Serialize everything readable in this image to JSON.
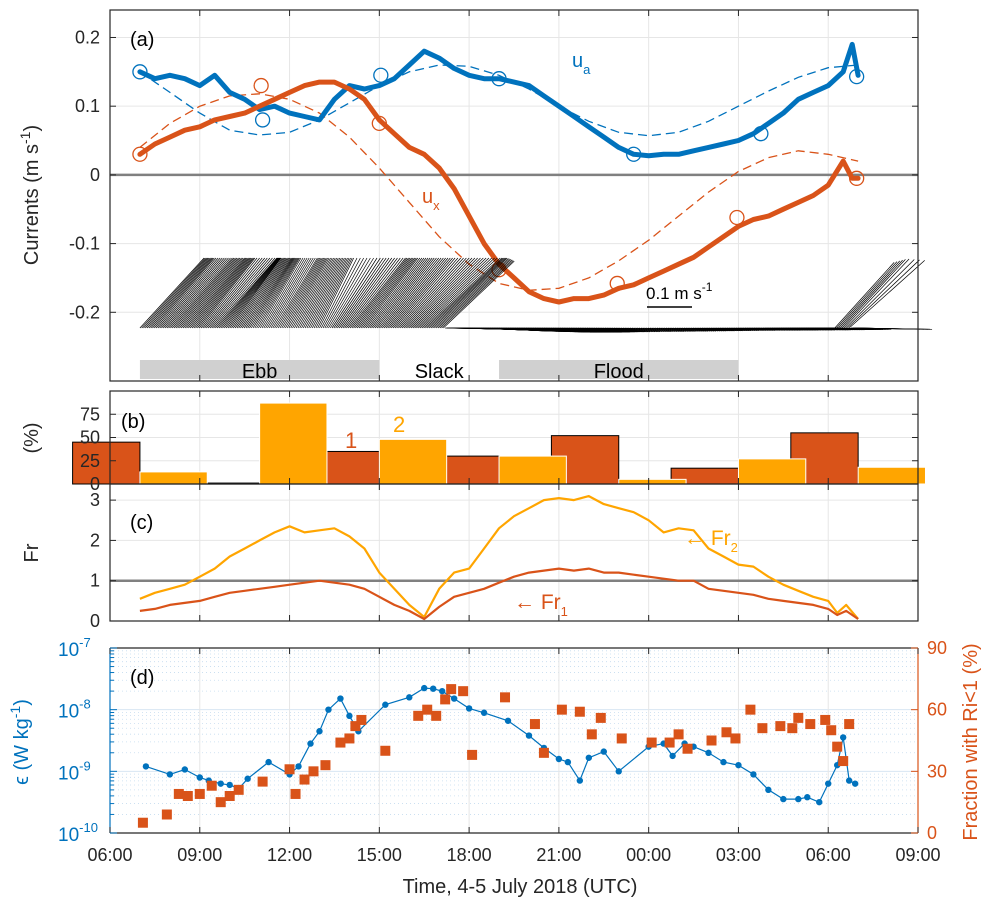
{
  "colors": {
    "blue": "#0072BD",
    "orange": "#D95319",
    "yellow": "#FFA500",
    "grey": "#808080",
    "bar_grey": "#D0D0D0"
  },
  "time_axis": {
    "ticks": [
      "06:00",
      "09:00",
      "12:00",
      "15:00",
      "18:00",
      "21:00",
      "00:00",
      "03:00",
      "06:00",
      "09:00"
    ],
    "tick_hours": [
      6,
      9,
      12,
      15,
      18,
      21,
      24,
      27,
      30,
      33
    ],
    "xlabel": "Time, 4-5 July 2018 (UTC)"
  },
  "chart_data": [
    {
      "panel": "(a)",
      "type": "line",
      "ylabel": "Currents (m s",
      "ylabel_sup": "-1",
      "ylabel_tail": ")",
      "ylim": [
        -0.3,
        0.24
      ],
      "yticks": [
        "0.2",
        "0.1",
        "0",
        "-0.1",
        "-0.2"
      ],
      "ytick_values": [
        0.2,
        0.1,
        0,
        -0.1,
        -0.2
      ],
      "series": [
        {
          "name": "u",
          "sub": "a",
          "color": "#0072BD",
          "x": [
            7.0,
            7.5,
            8.0,
            8.5,
            9.0,
            9.5,
            10.0,
            10.5,
            11.0,
            11.5,
            12.0,
            12.5,
            13.0,
            13.5,
            14.0,
            14.5,
            15.0,
            15.5,
            16.0,
            16.5,
            17.0,
            17.5,
            18.0,
            18.5,
            19.0,
            19.5,
            20.0,
            20.5,
            21.0,
            21.5,
            22.0,
            22.5,
            23.0,
            23.5,
            24.0,
            24.5,
            25.0,
            25.5,
            26.0,
            26.5,
            27.0,
            27.5,
            28.0,
            28.5,
            29.0,
            29.5,
            30.0,
            30.5,
            30.8,
            31.0
          ],
          "y": [
            0.15,
            0.14,
            0.145,
            0.14,
            0.13,
            0.145,
            0.12,
            0.11,
            0.095,
            0.1,
            0.09,
            0.085,
            0.08,
            0.11,
            0.13,
            0.125,
            0.13,
            0.14,
            0.16,
            0.18,
            0.17,
            0.155,
            0.145,
            0.14,
            0.14,
            0.135,
            0.13,
            0.115,
            0.1,
            0.085,
            0.07,
            0.055,
            0.04,
            0.03,
            0.028,
            0.03,
            0.03,
            0.035,
            0.04,
            0.045,
            0.05,
            0.06,
            0.075,
            0.09,
            0.11,
            0.12,
            0.13,
            0.15,
            0.19,
            0.145
          ]
        },
        {
          "name": "u",
          "sub": "x",
          "color": "#D95319",
          "x": [
            7.0,
            7.5,
            8.0,
            8.5,
            9.0,
            9.5,
            10.0,
            10.5,
            11.0,
            11.5,
            12.0,
            12.5,
            13.0,
            13.5,
            14.0,
            14.5,
            15.0,
            15.5,
            16.0,
            16.5,
            17.0,
            17.5,
            18.0,
            18.5,
            19.0,
            19.5,
            20.0,
            20.5,
            21.0,
            21.5,
            22.0,
            22.5,
            23.0,
            23.5,
            24.0,
            24.5,
            25.0,
            25.5,
            26.0,
            26.5,
            27.0,
            27.5,
            28.0,
            28.5,
            29.0,
            29.5,
            30.0,
            30.5,
            30.8,
            31.0
          ],
          "y": [
            0.03,
            0.045,
            0.055,
            0.065,
            0.07,
            0.08,
            0.085,
            0.09,
            0.1,
            0.11,
            0.12,
            0.13,
            0.135,
            0.135,
            0.125,
            0.11,
            0.08,
            0.06,
            0.04,
            0.03,
            0.01,
            -0.02,
            -0.06,
            -0.1,
            -0.13,
            -0.15,
            -0.17,
            -0.18,
            -0.185,
            -0.18,
            -0.18,
            -0.175,
            -0.165,
            -0.16,
            -0.15,
            -0.14,
            -0.13,
            -0.12,
            -0.105,
            -0.09,
            -0.075,
            -0.065,
            -0.06,
            -0.05,
            -0.04,
            -0.03,
            -0.015,
            0.02,
            -0.005,
            -0.005
          ]
        },
        {
          "name": "",
          "color": "#0072BD",
          "dashed": true,
          "x": [
            7,
            8,
            9,
            10,
            11,
            12,
            13,
            14,
            15,
            16,
            17,
            18,
            19,
            20,
            21,
            22,
            23,
            24,
            25,
            26,
            27,
            28,
            29,
            30,
            31
          ],
          "y": [
            0.15,
            0.12,
            0.09,
            0.065,
            0.058,
            0.062,
            0.08,
            0.105,
            0.13,
            0.15,
            0.16,
            0.158,
            0.145,
            0.125,
            0.1,
            0.078,
            0.062,
            0.057,
            0.062,
            0.078,
            0.1,
            0.122,
            0.142,
            0.156,
            0.16
          ]
        },
        {
          "name": "",
          "color": "#D95319",
          "dashed": true,
          "x": [
            7,
            8,
            9,
            10,
            11,
            12,
            13,
            14,
            15,
            16,
            17,
            18,
            19,
            20,
            21,
            22,
            23,
            24,
            25,
            26,
            27,
            28,
            29,
            30,
            31
          ],
          "y": [
            0.04,
            0.075,
            0.1,
            0.115,
            0.118,
            0.11,
            0.09,
            0.055,
            0.01,
            -0.04,
            -0.09,
            -0.13,
            -0.158,
            -0.168,
            -0.165,
            -0.15,
            -0.125,
            -0.095,
            -0.06,
            -0.025,
            0.005,
            0.025,
            0.035,
            0.03,
            0.02
          ]
        }
      ],
      "markers_ua": {
        "x": [
          7.0,
          11.1,
          15.05,
          19.0,
          23.5,
          27.75,
          30.95
        ],
        "y": [
          0.15,
          0.08,
          0.145,
          0.14,
          0.03,
          0.06,
          0.143
        ]
      },
      "markers_ux": {
        "x": [
          7.0,
          11.05,
          15.0,
          19.0,
          22.95,
          26.95,
          30.95
        ],
        "y": [
          0.03,
          0.13,
          0.075,
          -0.138,
          -0.158,
          -0.062,
          -0.005
        ]
      },
      "vectors": {
        "scale_label": "0.1 m s",
        "scale_sup": "-1",
        "scale_value": 0.1
      },
      "phases": [
        {
          "label": "Ebb",
          "start": 7.0,
          "end": 15.0
        },
        {
          "label": "Slack",
          "start": 15.0,
          "end": 19.0
        },
        {
          "label": "Flood",
          "start": 19.0,
          "end": 27.0
        }
      ]
    },
    {
      "panel": "(b)",
      "type": "bar",
      "ylabel": "(%)",
      "ylim": [
        0,
        100
      ],
      "yticks": [
        "75",
        "50",
        "25",
        "0"
      ],
      "ytick_values": [
        75,
        50,
        25,
        0
      ],
      "bar_labels": [
        "1",
        "2"
      ],
      "series": [
        {
          "name": "1",
          "color": "#D95319",
          "x": [
            7,
            11,
            15,
            19,
            23,
            27,
            31
          ],
          "values": [
            45,
            1,
            35,
            30,
            52,
            17,
            55
          ]
        },
        {
          "name": "2",
          "color": "#FFA500",
          "x": [
            7,
            11,
            15,
            19,
            23,
            27,
            31
          ],
          "values": [
            13,
            87,
            48,
            30,
            5,
            27,
            18
          ]
        }
      ]
    },
    {
      "panel": "(c)",
      "type": "line",
      "ylabel": "Fr",
      "ylim": [
        0,
        3.4
      ],
      "yticks": [
        "3",
        "2",
        "1",
        "0"
      ],
      "ytick_values": [
        3,
        2,
        1,
        0
      ],
      "reference_y": 1,
      "series": [
        {
          "name": "Fr",
          "sub": "2",
          "color": "#FFA500",
          "x": [
            7,
            7.5,
            8,
            8.5,
            9,
            9.5,
            10,
            10.5,
            11,
            11.5,
            12,
            12.5,
            13,
            13.5,
            14,
            14.5,
            15,
            15.5,
            16,
            16.5,
            17,
            17.5,
            18,
            18.5,
            19,
            19.5,
            20,
            20.5,
            21,
            21.5,
            22,
            22.5,
            23,
            23.5,
            24,
            24.5,
            25,
            25.5,
            26,
            26.5,
            27,
            27.5,
            28,
            28.5,
            29,
            29.5,
            30,
            30.3,
            30.6,
            31
          ],
          "y": [
            0.55,
            0.7,
            0.8,
            0.9,
            1.1,
            1.3,
            1.6,
            1.8,
            2.0,
            2.2,
            2.35,
            2.2,
            2.25,
            2.3,
            2.1,
            1.8,
            1.2,
            0.8,
            0.4,
            0.1,
            0.8,
            1.2,
            1.3,
            1.8,
            2.3,
            2.6,
            2.8,
            3.0,
            3.05,
            3.0,
            3.1,
            2.9,
            2.8,
            2.7,
            2.5,
            2.2,
            2.3,
            2.25,
            1.8,
            1.6,
            1.4,
            1.35,
            1.1,
            0.9,
            0.75,
            0.6,
            0.5,
            0.2,
            0.4,
            0.05
          ]
        },
        {
          "name": "Fr",
          "sub": "1",
          "color": "#D95319",
          "x": [
            7,
            7.5,
            8,
            8.5,
            9,
            9.5,
            10,
            10.5,
            11,
            11.5,
            12,
            12.5,
            13,
            13.5,
            14,
            14.5,
            15,
            15.5,
            16,
            16.5,
            17,
            17.5,
            18,
            18.5,
            19,
            19.5,
            20,
            20.5,
            21,
            21.5,
            22,
            22.5,
            23,
            23.5,
            24,
            24.5,
            25,
            25.5,
            26,
            26.5,
            27,
            27.5,
            28,
            28.5,
            29,
            29.5,
            30,
            30.3,
            30.6,
            31
          ],
          "y": [
            0.25,
            0.3,
            0.4,
            0.45,
            0.5,
            0.6,
            0.7,
            0.75,
            0.8,
            0.85,
            0.9,
            0.95,
            1.0,
            0.95,
            0.9,
            0.8,
            0.6,
            0.4,
            0.25,
            0.05,
            0.35,
            0.6,
            0.7,
            0.8,
            0.95,
            1.1,
            1.2,
            1.25,
            1.3,
            1.25,
            1.3,
            1.2,
            1.2,
            1.15,
            1.1,
            1.05,
            1.0,
            1.0,
            0.8,
            0.75,
            0.7,
            0.65,
            0.55,
            0.5,
            0.45,
            0.4,
            0.3,
            0.15,
            0.25,
            0.05
          ]
        }
      ]
    },
    {
      "panel": "(d)",
      "type": "scatter",
      "ylabel_left": "ϵ (W kg",
      "ylabel_left_sup": "-1",
      "ylabel_left_tail": ")",
      "ylabel_right": "Fraction with Ri<1 (%)",
      "ylim_left_log10": [
        -10,
        -7
      ],
      "yticks_left": [
        "10",
        "10",
        "10",
        "10"
      ],
      "yticks_left_exp": [
        "-7",
        "-8",
        "-9",
        "-10"
      ],
      "ylim_right": [
        0,
        90
      ],
      "yticks_right": [
        "90",
        "60",
        "30",
        "0"
      ],
      "ytick_right_values": [
        90,
        60,
        30,
        0
      ],
      "series": [
        {
          "name": "ϵ",
          "color": "#0072BD",
          "x": [
            7.2,
            8,
            8.5,
            9,
            9.3,
            9.7,
            10,
            10.3,
            10.6,
            11.3,
            12,
            12.3,
            12.7,
            13,
            13.3,
            13.7,
            14,
            14.3,
            15.2,
            16,
            16.5,
            16.8,
            17.1,
            17.5,
            18,
            18.5,
            19.3,
            20,
            20.5,
            21,
            21.3,
            21.7,
            22,
            22.5,
            23,
            24,
            24.5,
            24.8,
            25.2,
            25.5,
            26,
            26.5,
            27,
            27.5,
            28,
            28.5,
            29,
            29.3,
            29.7,
            30,
            30.3,
            30.5,
            30.7,
            30.9
          ],
          "ylog10": [
            -8.92,
            -9.05,
            -8.97,
            -9.1,
            -9.15,
            -9.2,
            -9.22,
            -9.28,
            -9.12,
            -8.85,
            -9.05,
            -8.92,
            -8.55,
            -8.35,
            -8.0,
            -7.82,
            -8.1,
            -8.35,
            -7.92,
            -7.8,
            -7.65,
            -7.66,
            -7.7,
            -7.82,
            -7.98,
            -8.05,
            -8.18,
            -8.42,
            -8.62,
            -8.8,
            -8.85,
            -9.15,
            -8.78,
            -8.68,
            -9.0,
            -8.6,
            -8.55,
            -8.75,
            -8.55,
            -8.6,
            -8.7,
            -8.85,
            -8.9,
            -9.05,
            -9.3,
            -9.45,
            -9.45,
            -9.42,
            -9.5,
            -9.2,
            -8.9,
            -8.45,
            -9.15,
            -9.2
          ]
        },
        {
          "name": "Fraction with Ri<1",
          "color": "#D95319",
          "x": [
            7.1,
            7.9,
            8.3,
            8.6,
            9.0,
            9.4,
            9.7,
            10.0,
            10.3,
            11.1,
            12.0,
            12.2,
            12.5,
            12.8,
            13.2,
            13.7,
            14.0,
            14.2,
            14.4,
            15.2,
            16.3,
            16.6,
            16.9,
            17.2,
            17.4,
            17.8,
            18.1,
            19.2,
            20.2,
            20.5,
            21.1,
            21.7,
            22.1,
            22.4,
            23.1,
            24.1,
            24.7,
            25.0,
            25.3,
            26.1,
            26.6,
            26.9,
            27.4,
            27.8,
            28.4,
            28.8,
            29.0,
            29.4,
            29.9,
            30.1,
            30.3,
            30.5,
            30.7
          ],
          "ypct": [
            5,
            9,
            19,
            18,
            19,
            23,
            15,
            18,
            21,
            25,
            31,
            19,
            26,
            30,
            33,
            44,
            46,
            52,
            55,
            40,
            57,
            60,
            57,
            65,
            70,
            69,
            38,
            66,
            53,
            39,
            60,
            59,
            48,
            56,
            46,
            44,
            44,
            48,
            41,
            45,
            49,
            46,
            60,
            51,
            52,
            51,
            56,
            53,
            55,
            50,
            42,
            35,
            53
          ]
        }
      ]
    }
  ],
  "annotations": {
    "ua_label": "u",
    "ua_sub": "a",
    "ux_label": "u",
    "ux_sub": "x",
    "fr2_arrow": "← Fr",
    "fr2_sub": "2",
    "fr1_arrow": "← Fr",
    "fr1_sub": "1"
  }
}
